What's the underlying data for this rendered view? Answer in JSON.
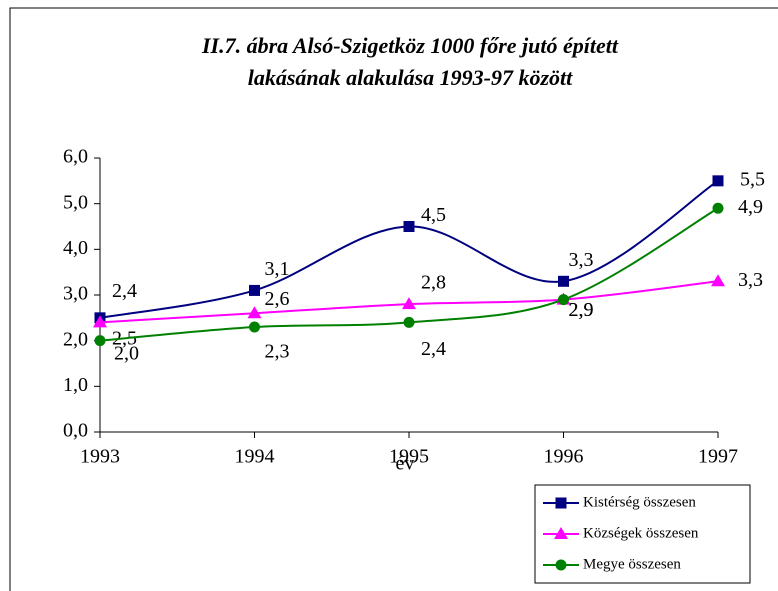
{
  "chart_data": {
    "type": "line",
    "title": "II.7. ábra Alsó-Szigetköz 1000 főre jutó épített",
    "subtitle": "lakásának alakulása 1993-97 között",
    "x_label": "év",
    "categories": [
      "1993",
      "1994",
      "1995",
      "1996",
      "1997"
    ],
    "ylim": [
      0,
      6
    ],
    "yticks": [
      {
        "value": 0,
        "label": "0,0"
      },
      {
        "value": 1,
        "label": "1,0"
      },
      {
        "value": 2,
        "label": "2,0"
      },
      {
        "value": 3,
        "label": "3,0"
      },
      {
        "value": 4,
        "label": "4,0"
      },
      {
        "value": 5,
        "label": "5,0"
      },
      {
        "value": 6,
        "label": "6,0"
      }
    ],
    "legend": "bottom-right",
    "series": [
      {
        "name": "Kistérség összesen",
        "color": "#000080",
        "marker": "square",
        "values": [
          2.5,
          3.1,
          4.5,
          3.3,
          5.5
        ],
        "value_labels": [
          "2,5",
          "3,1",
          "4,5",
          "3,3",
          "5,5"
        ]
      },
      {
        "name": "Községek összesen",
        "color": "#ff00ff",
        "marker": "triangle",
        "values": [
          2.4,
          2.6,
          2.8,
          2.9,
          3.3
        ],
        "value_labels": [
          "2,4",
          "2,6",
          "2,8",
          "2,9",
          "3,3"
        ]
      },
      {
        "name": "Megye összesen",
        "color": "#008000",
        "marker": "circle",
        "values": [
          2.0,
          2.3,
          2.4,
          2.9,
          4.9
        ],
        "value_labels": [
          "2,0",
          "2,3",
          "2,4",
          "2,9",
          "4,9"
        ]
      }
    ]
  }
}
